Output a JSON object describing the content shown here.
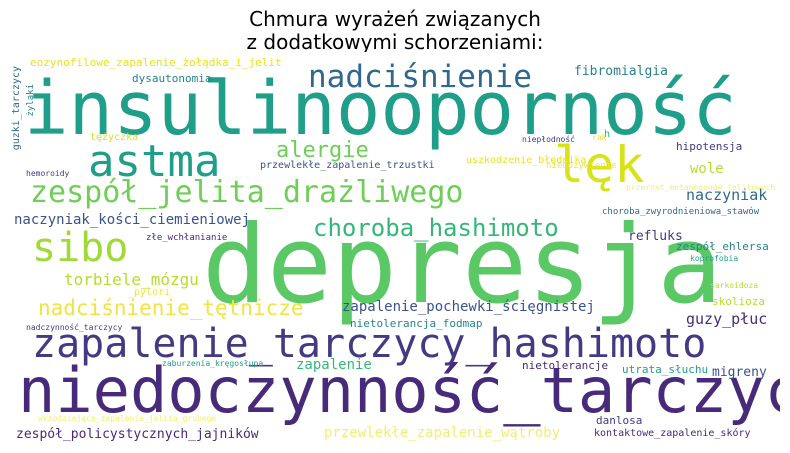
{
  "title_line1": "Chmura wyrażeń związanych",
  "title_line2": "z dodatkowymi schorzeniami:",
  "words": {
    "w01": "insulinooporność",
    "w02": "depresja",
    "w03": "niedoczynność_tarczycy",
    "w04": "zapalenie_tarczycy_hashimoto",
    "w05": "astma",
    "w06": "lęk",
    "w07": "zespół_jelita_drażliwego",
    "w08": "nadciśnienie",
    "w09": "sibo",
    "w10": "choroba_hashimoto",
    "w11": "alergie",
    "w12": "nadciśnienie_tętnicze",
    "w13": "torbiele_mózgu",
    "w14": "zapalenie_pochewki_ścięgnistej",
    "w15": "guzy_płuc",
    "w16": "naczyniak_kości_ciemieniowej",
    "w17": "zespół_policystycznych_jajników",
    "w18": "przewlekłe_zapalenie_wątroby",
    "w19": "eozynofilowe_zapalenie_żołądka_i_jelit",
    "w20": "dysautonomia",
    "w21": "fibromialgia",
    "w22": "wole",
    "w23": "naczyniak",
    "w24": "refluks",
    "w25": "zapalenie",
    "w26": "migreny",
    "w27": "skolioza",
    "w28": "nietolerancja_fodmap",
    "w29": "nietolerancje",
    "w30": "utrata_słuchu",
    "w31": "danlosa",
    "w32": "kontaktowe_zapalenie_skóry",
    "w33": "przewlekłe_zapalenie_trzustki",
    "w34": "uszkodzenie_błędnika",
    "w35": "hipotensja",
    "w36": "choroba_zwyrodnieniowa_stawów",
    "w37": "zespół_ehlersa",
    "w38": "niedożywienie",
    "w39": "przerost_metanogenów_jelitowych",
    "w40": "koprofobia",
    "w41": "sarkoidoza",
    "w42": "tężyczka",
    "w43": "hemoroidy",
    "w44": "złe_wchłanianie",
    "w45": "_pylori",
    "w46": "nadczynność_tarczycy",
    "w47": "zaburzenia_kręgosłupa",
    "w48": "wrzodziejące_zapalenie_jelita_grubego",
    "w49": "niepłodność",
    "w50": "rak",
    "w51": "h",
    "w52": "guzki_tarczycy",
    "w53": "żylaki"
  },
  "colors": {
    "dark_purple": "#472a7a",
    "purple": "#443983",
    "indigo": "#3b528b",
    "blue": "#31688e",
    "teal": "#26828e",
    "teal_green": "#1f9e89",
    "green": "#35b779",
    "light_green": "#6ece58",
    "lime": "#b5de2b",
    "yellow": "#e7e419",
    "pale_yellow": "#f2ee6e"
  }
}
